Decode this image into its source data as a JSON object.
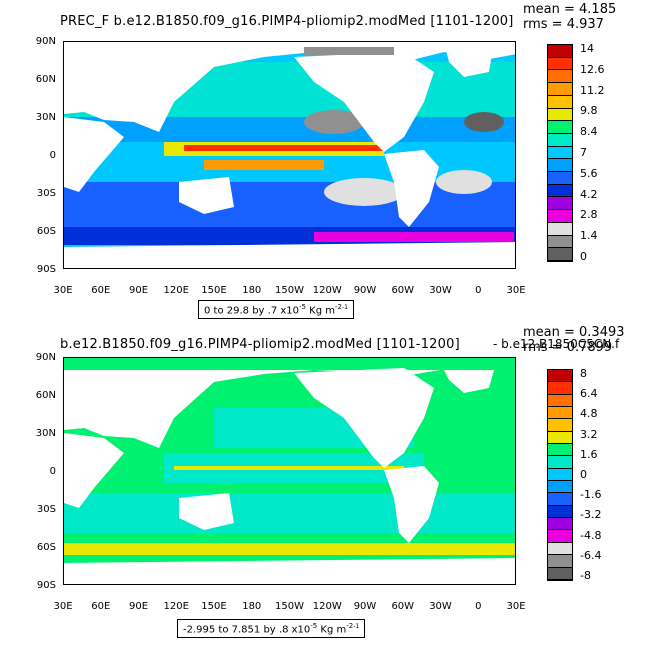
{
  "panels": [
    {
      "title": "PREC_F  b.e12.B1850.f09_g16.PIMP4-pliomip2.modMed  [1101-1200]",
      "mean": "mean = 4.185",
      "rms": "rms = 4.937",
      "range_text": "0 to 29.8 by .7 x10",
      "units_text": " Kg m",
      "y_labels": [
        "90N",
        "60N",
        "30N",
        "0",
        "30S",
        "60S",
        "90S"
      ],
      "x_labels": [
        "30E",
        "60E",
        "90E",
        "120E",
        "150E",
        "180",
        "150W",
        "120W",
        "90W",
        "60W",
        "30W",
        "0",
        "30E"
      ],
      "colorbar": {
        "labels": [
          "14",
          "12.6",
          "11.2",
          "9.8",
          "8.4",
          "7",
          "5.6",
          "4.2",
          "2.8",
          "1.4",
          "0"
        ],
        "colors": [
          "#c00000",
          "#ff3000",
          "#ff7000",
          "#ff9a00",
          "#ffc000",
          "#e8e800",
          "#00f070",
          "#00e8c8",
          "#00c8ff",
          "#00a0ff",
          "#1860ff",
          "#0030d8",
          "#a000e0",
          "#e800e0",
          "#e0e0e0",
          "#909090",
          "#606060"
        ]
      }
    },
    {
      "title": "b.e12.B1850.f09_g16.PIMP4-pliomip2.modMed  [1101-1200]",
      "title_overlay": "- b.e12.B1850C5CN.f",
      "mean": "mean = 0.3493",
      "rms": "rms = 0.7899",
      "range_text": "-2.995 to 7.851 by .8 x10",
      "units_text": " Kg m",
      "y_labels": [
        "90N",
        "60N",
        "30N",
        "0",
        "30S",
        "60S",
        "90S"
      ],
      "x_labels": [
        "30E",
        "60E",
        "90E",
        "120E",
        "150E",
        "180",
        "150W",
        "120W",
        "90W",
        "60W",
        "30W",
        "0",
        "30E"
      ],
      "colorbar": {
        "labels": [
          "8",
          "6.4",
          "4.8",
          "3.2",
          "1.6",
          "0",
          "-1.6",
          "-3.2",
          "-4.8",
          "-6.4",
          "-8"
        ],
        "colors": [
          "#c00000",
          "#ff3000",
          "#ff7000",
          "#ff9a00",
          "#ffc000",
          "#e8e800",
          "#00f070",
          "#00e8c8",
          "#00c8ff",
          "#00a0ff",
          "#1860ff",
          "#0030d8",
          "#a000e0",
          "#e800e0",
          "#e0e0e0",
          "#909090",
          "#606060"
        ]
      }
    }
  ],
  "exponent": "-5",
  "units_exponent": "-2",
  "units_exponent2": "-1",
  "colors": {
    "land": "#ffffff",
    "ocean_top": "#1860ff",
    "ocean_bottom": "#00f070"
  }
}
